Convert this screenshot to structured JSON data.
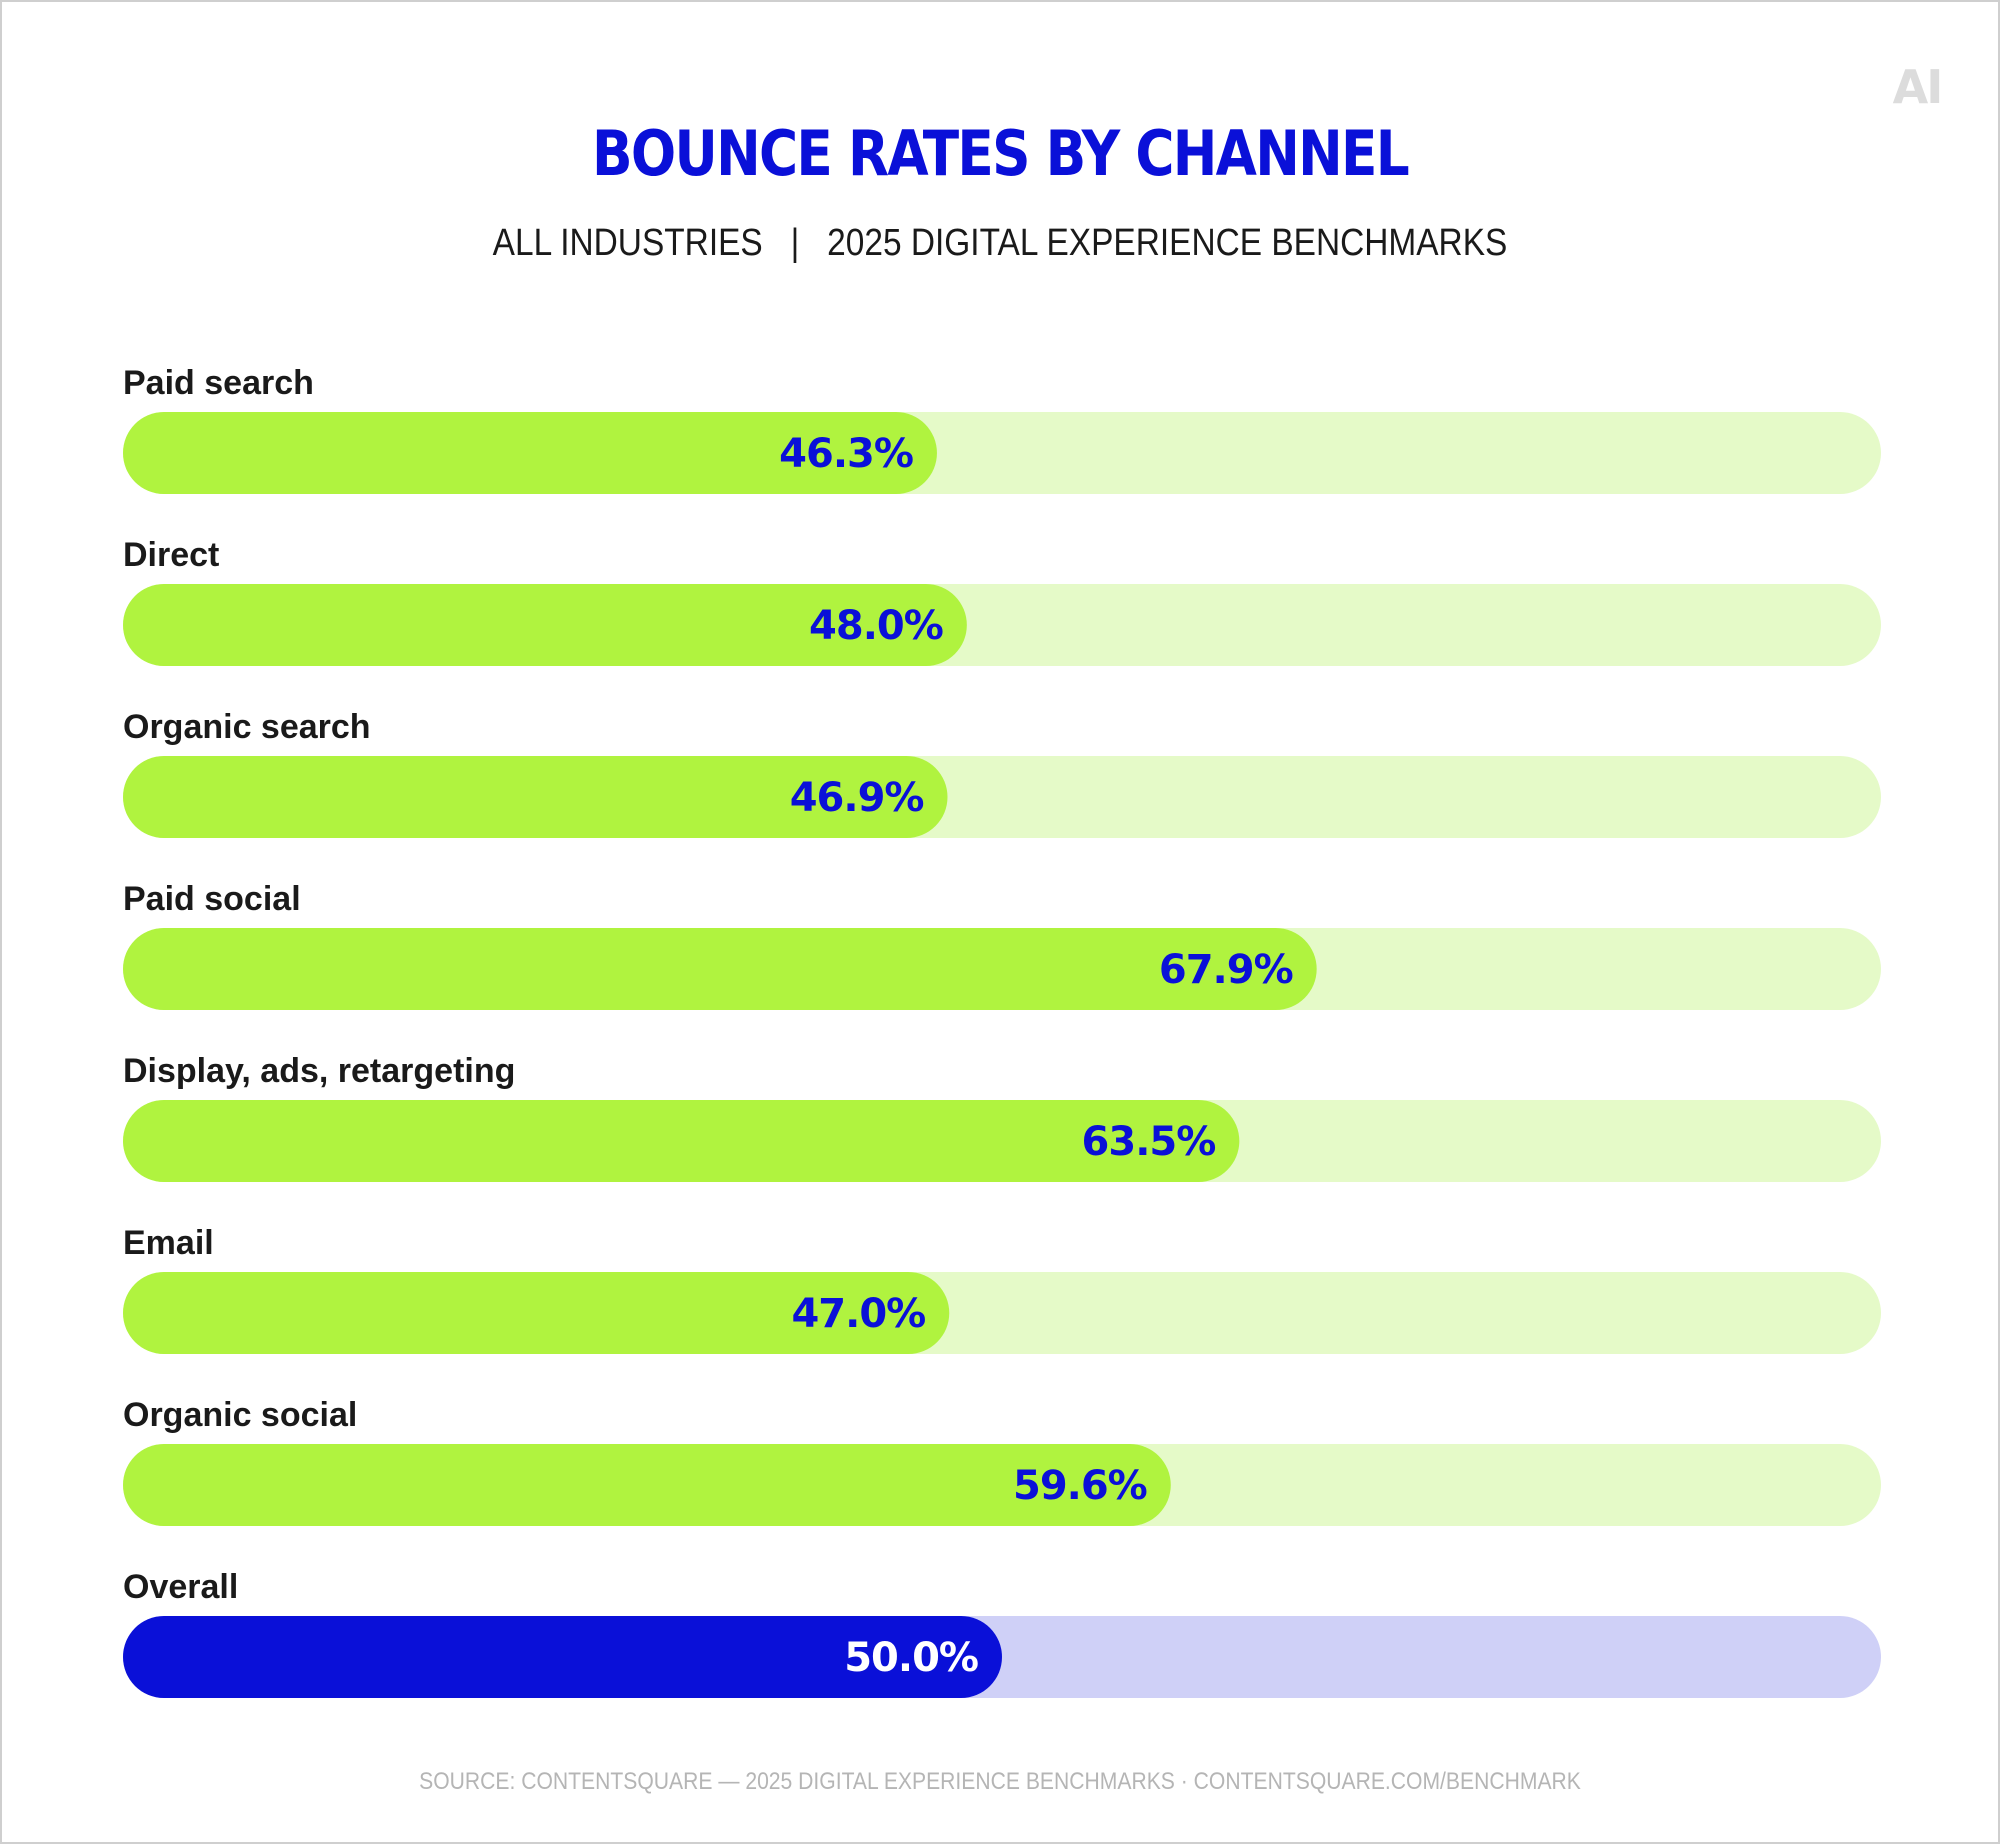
{
  "header": {
    "title": "BOUNCE RATES BY CHANNEL",
    "subtitle": "ALL INDUSTRIES   |   2025 DIGITAL EXPERIENCE BENCHMARKS",
    "logo_text": "AI"
  },
  "footer": {
    "source": "SOURCE: CONTENTSQUARE — 2025 DIGITAL EXPERIENCE BENCHMARKS · CONTENTSQUARE.COM/BENCHMARK"
  },
  "colors": {
    "title": "#0a10d8",
    "bar_fill": "#b0f33f",
    "bar_track": "#e5fac8",
    "bar_label": "#0a10d8",
    "overall_fill": "#0a10d8",
    "overall_track": "#cfd0f7",
    "overall_label": "#ffffff",
    "category_label": "#1a1a1a"
  },
  "chart_data": {
    "type": "bar",
    "orientation": "horizontal",
    "title": "BOUNCE RATES BY CHANNEL",
    "subtitle": "ALL INDUSTRIES | 2025 DIGITAL EXPERIENCE BENCHMARKS",
    "categories": [
      "Paid search",
      "Direct",
      "Organic search",
      "Paid social",
      "Display, ads, retargeting",
      "Email",
      "Organic social",
      "Overall"
    ],
    "values": [
      46.3,
      48.0,
      46.9,
      67.9,
      63.5,
      47.0,
      59.6,
      50.0
    ],
    "value_labels": [
      "46.3%",
      "48.0%",
      "46.9%",
      "67.9%",
      "63.5%",
      "47.0%",
      "59.6%",
      "50.0%"
    ],
    "highlight": [
      "Overall"
    ],
    "unit": "%",
    "xlim": [
      0,
      100
    ],
    "grid": false,
    "legend": "none"
  }
}
